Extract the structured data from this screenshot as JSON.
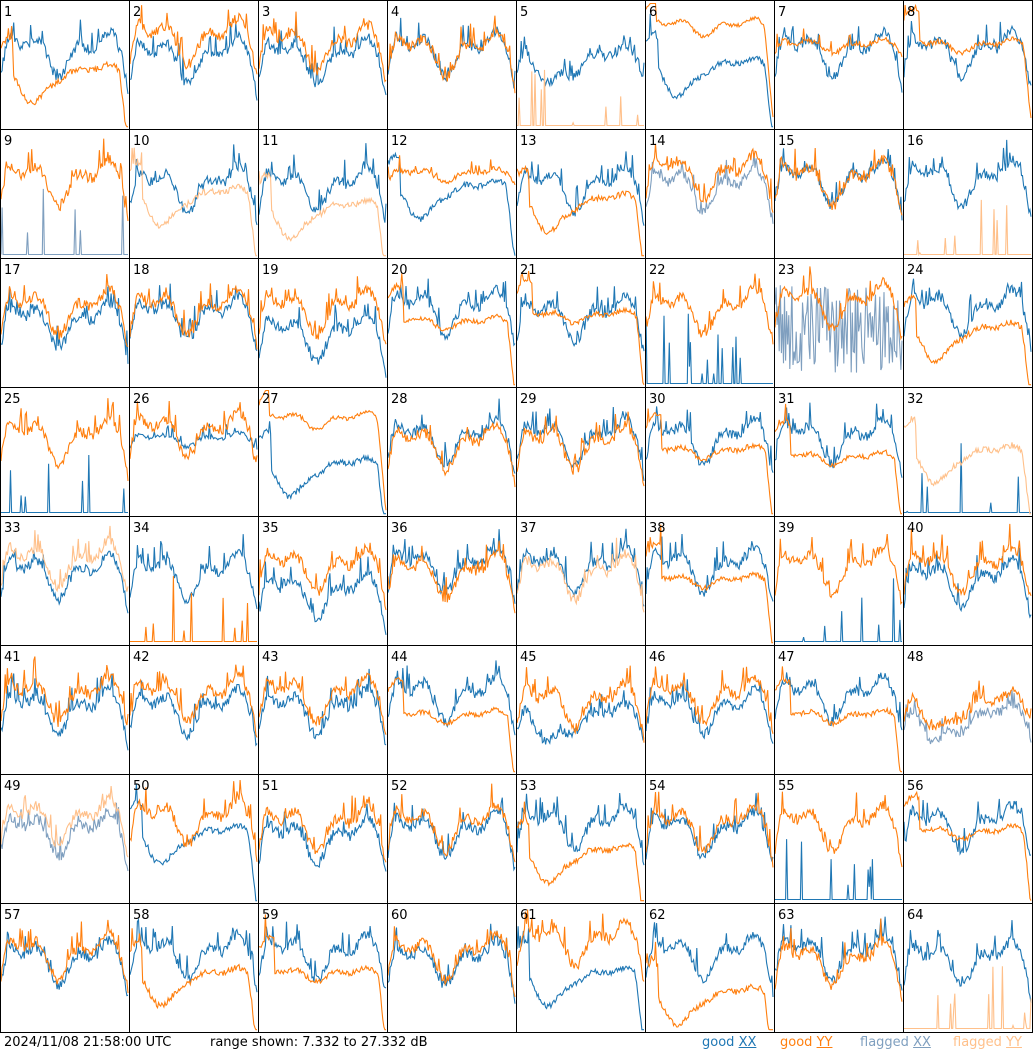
{
  "chart_data": {
    "type": "line",
    "panels": [
      {
        "label": "1",
        "xx": {
          "status": "good",
          "shape": "normal",
          "lvl": 0.4
        },
        "yy": {
          "status": "good",
          "shape": "dip_drop",
          "lvl": 0.55
        }
      },
      {
        "label": "2",
        "xx": {
          "status": "good",
          "shape": "normal",
          "lvl": 0.45
        },
        "yy": {
          "status": "good",
          "shape": "normal",
          "lvl": 0.3
        }
      },
      {
        "label": "3",
        "xx": {
          "status": "good",
          "shape": "normal",
          "lvl": 0.45
        },
        "yy": {
          "status": "good",
          "shape": "normal",
          "lvl": 0.35
        }
      },
      {
        "label": "4",
        "xx": {
          "status": "good",
          "shape": "normal",
          "lvl": 0.4
        },
        "yy": {
          "status": "good",
          "shape": "normal",
          "lvl": 0.4
        }
      },
      {
        "label": "5",
        "xx": {
          "status": "good",
          "shape": "dip",
          "lvl": 0.45
        },
        "yy": {
          "status": "flagged",
          "shape": "spikes_low",
          "lvl": 0.9
        }
      },
      {
        "label": "6",
        "xx": {
          "status": "good",
          "shape": "dip_drop",
          "lvl": 0.5
        },
        "yy": {
          "status": "good",
          "shape": "flat_high",
          "lvl": 0.2
        }
      },
      {
        "label": "7",
        "xx": {
          "status": "good",
          "shape": "normal",
          "lvl": 0.4
        },
        "yy": {
          "status": "good",
          "shape": "flat",
          "lvl": 0.35
        }
      },
      {
        "label": "8",
        "xx": {
          "status": "good",
          "shape": "normal",
          "lvl": 0.4
        },
        "yy": {
          "status": "good",
          "shape": "flat_drop",
          "lvl": 0.35
        }
      },
      {
        "label": "9",
        "xx": {
          "status": "flagged",
          "shape": "spikes_low",
          "lvl": 0.9
        },
        "yy": {
          "status": "good",
          "shape": "normal",
          "lvl": 0.4
        }
      },
      {
        "label": "10",
        "xx": {
          "status": "good",
          "shape": "normal",
          "lvl": 0.45
        },
        "yy": {
          "status": "flagged",
          "shape": "dip_drop",
          "lvl": 0.5
        }
      },
      {
        "label": "11",
        "xx": {
          "status": "good",
          "shape": "normal",
          "lvl": 0.45
        },
        "yy": {
          "status": "flagged",
          "shape": "dip_drop",
          "lvl": 0.6
        }
      },
      {
        "label": "12",
        "xx": {
          "status": "good",
          "shape": "dip_drop",
          "lvl": 0.45
        },
        "yy": {
          "status": "good",
          "shape": "flat",
          "lvl": 0.35
        }
      },
      {
        "label": "13",
        "xx": {
          "status": "good",
          "shape": "normal",
          "lvl": 0.45
        },
        "yy": {
          "status": "good",
          "shape": "dip_drop",
          "lvl": 0.55
        }
      },
      {
        "label": "14",
        "xx": {
          "status": "flagged",
          "shape": "normal",
          "lvl": 0.45
        },
        "yy": {
          "status": "good",
          "shape": "normal",
          "lvl": 0.35
        }
      },
      {
        "label": "15",
        "xx": {
          "status": "good",
          "shape": "normal",
          "lvl": 0.4
        },
        "yy": {
          "status": "good",
          "shape": "normal",
          "lvl": 0.4
        }
      },
      {
        "label": "16",
        "xx": {
          "status": "good",
          "shape": "normal",
          "lvl": 0.4
        },
        "yy": {
          "status": "flagged",
          "shape": "spikes_low",
          "lvl": 0.95
        }
      },
      {
        "label": "17",
        "xx": {
          "status": "good",
          "shape": "normal",
          "lvl": 0.5
        },
        "yy": {
          "status": "good",
          "shape": "normal",
          "lvl": 0.4
        }
      },
      {
        "label": "18",
        "xx": {
          "status": "good",
          "shape": "normal",
          "lvl": 0.45
        },
        "yy": {
          "status": "good",
          "shape": "normal",
          "lvl": 0.4
        }
      },
      {
        "label": "19",
        "xx": {
          "status": "good",
          "shape": "normal",
          "lvl": 0.6
        },
        "yy": {
          "status": "good",
          "shape": "normal",
          "lvl": 0.4
        }
      },
      {
        "label": "20",
        "xx": {
          "status": "good",
          "shape": "normal",
          "lvl": 0.4
        },
        "yy": {
          "status": "good",
          "shape": "flat_drop",
          "lvl": 0.5
        }
      },
      {
        "label": "21",
        "xx": {
          "status": "good",
          "shape": "normal",
          "lvl": 0.45
        },
        "yy": {
          "status": "good",
          "shape": "flat_drop",
          "lvl": 0.45
        }
      },
      {
        "label": "22",
        "xx": {
          "status": "good",
          "shape": "spikes_low",
          "lvl": 0.9
        },
        "yy": {
          "status": "good",
          "shape": "normal",
          "lvl": 0.4
        }
      },
      {
        "label": "23",
        "xx": {
          "status": "flagged",
          "shape": "noisy",
          "lvl": 0.55
        },
        "yy": {
          "status": "good",
          "shape": "normal",
          "lvl": 0.35
        }
      },
      {
        "label": "24",
        "xx": {
          "status": "good",
          "shape": "normal",
          "lvl": 0.4
        },
        "yy": {
          "status": "good",
          "shape": "dip_drop",
          "lvl": 0.55
        }
      },
      {
        "label": "25",
        "xx": {
          "status": "good",
          "shape": "spikes_low",
          "lvl": 0.95
        },
        "yy": {
          "status": "good",
          "shape": "normal",
          "lvl": 0.4
        }
      },
      {
        "label": "26",
        "xx": {
          "status": "good",
          "shape": "flat",
          "lvl": 0.4
        },
        "yy": {
          "status": "good",
          "shape": "normal",
          "lvl": 0.35
        }
      },
      {
        "label": "27",
        "xx": {
          "status": "good",
          "shape": "dip_drop",
          "lvl": 0.6
        },
        "yy": {
          "status": "good",
          "shape": "flat_high",
          "lvl": 0.25
        }
      },
      {
        "label": "28",
        "xx": {
          "status": "good",
          "shape": "normal",
          "lvl": 0.4
        },
        "yy": {
          "status": "good",
          "shape": "normal",
          "lvl": 0.45
        }
      },
      {
        "label": "29",
        "xx": {
          "status": "good",
          "shape": "normal",
          "lvl": 0.4
        },
        "yy": {
          "status": "good",
          "shape": "normal",
          "lvl": 0.45
        }
      },
      {
        "label": "30",
        "xx": {
          "status": "good",
          "shape": "normal",
          "lvl": 0.4
        },
        "yy": {
          "status": "good",
          "shape": "flat_drop",
          "lvl": 0.5
        }
      },
      {
        "label": "31",
        "xx": {
          "status": "good",
          "shape": "normal",
          "lvl": 0.4
        },
        "yy": {
          "status": "good",
          "shape": "flat_drop",
          "lvl": 0.55
        }
      },
      {
        "label": "32",
        "xx": {
          "status": "good",
          "shape": "spikes_low",
          "lvl": 0.9
        },
        "yy": {
          "status": "flagged",
          "shape": "dip_drop",
          "lvl": 0.5
        }
      },
      {
        "label": "33",
        "xx": {
          "status": "good",
          "shape": "normal",
          "lvl": 0.45
        },
        "yy": {
          "status": "flagged",
          "shape": "normal",
          "lvl": 0.35
        }
      },
      {
        "label": "34",
        "xx": {
          "status": "good",
          "shape": "normal",
          "lvl": 0.45
        },
        "yy": {
          "status": "good",
          "shape": "spikes_low",
          "lvl": 0.95
        }
      },
      {
        "label": "35",
        "xx": {
          "status": "good",
          "shape": "normal",
          "lvl": 0.6
        },
        "yy": {
          "status": "good",
          "shape": "normal",
          "lvl": 0.4
        }
      },
      {
        "label": "36",
        "xx": {
          "status": "good",
          "shape": "normal",
          "lvl": 0.4
        },
        "yy": {
          "status": "good",
          "shape": "normal",
          "lvl": 0.45
        }
      },
      {
        "label": "37",
        "xx": {
          "status": "good",
          "shape": "normal",
          "lvl": 0.4
        },
        "yy": {
          "status": "flagged",
          "shape": "normal",
          "lvl": 0.45
        }
      },
      {
        "label": "38",
        "xx": {
          "status": "good",
          "shape": "normal",
          "lvl": 0.4
        },
        "yy": {
          "status": "good",
          "shape": "flat_drop",
          "lvl": 0.5
        }
      },
      {
        "label": "39",
        "xx": {
          "status": "good",
          "shape": "spikes_low",
          "lvl": 0.95
        },
        "yy": {
          "status": "good",
          "shape": "normal",
          "lvl": 0.4
        }
      },
      {
        "label": "40",
        "xx": {
          "status": "good",
          "shape": "normal",
          "lvl": 0.5
        },
        "yy": {
          "status": "good",
          "shape": "normal",
          "lvl": 0.4
        }
      },
      {
        "label": "41",
        "xx": {
          "status": "good",
          "shape": "normal",
          "lvl": 0.5
        },
        "yy": {
          "status": "good",
          "shape": "normal",
          "lvl": 0.4
        }
      },
      {
        "label": "42",
        "xx": {
          "status": "good",
          "shape": "normal",
          "lvl": 0.5
        },
        "yy": {
          "status": "good",
          "shape": "normal",
          "lvl": 0.4
        }
      },
      {
        "label": "43",
        "xx": {
          "status": "good",
          "shape": "normal",
          "lvl": 0.5
        },
        "yy": {
          "status": "good",
          "shape": "normal",
          "lvl": 0.4
        }
      },
      {
        "label": "44",
        "xx": {
          "status": "good",
          "shape": "normal",
          "lvl": 0.4
        },
        "yy": {
          "status": "good",
          "shape": "flat_drop",
          "lvl": 0.55
        }
      },
      {
        "label": "45",
        "xx": {
          "status": "good",
          "shape": "dip",
          "lvl": 0.55
        },
        "yy": {
          "status": "good",
          "shape": "normal",
          "lvl": 0.45
        }
      },
      {
        "label": "46",
        "xx": {
          "status": "good",
          "shape": "normal",
          "lvl": 0.5
        },
        "yy": {
          "status": "good",
          "shape": "normal",
          "lvl": 0.4
        }
      },
      {
        "label": "47",
        "xx": {
          "status": "good",
          "shape": "normal",
          "lvl": 0.4
        },
        "yy": {
          "status": "good",
          "shape": "flat_drop",
          "lvl": 0.55
        }
      },
      {
        "label": "48",
        "xx": {
          "status": "flagged",
          "shape": "dip",
          "lvl": 0.55
        },
        "yy": {
          "status": "good",
          "shape": "dip",
          "lvl": 0.45
        }
      },
      {
        "label": "49",
        "xx": {
          "status": "flagged",
          "shape": "normal",
          "lvl": 0.45
        },
        "yy": {
          "status": "flagged",
          "shape": "normal",
          "lvl": 0.35
        }
      },
      {
        "label": "50",
        "xx": {
          "status": "good",
          "shape": "dip_drop",
          "lvl": 0.45
        },
        "yy": {
          "status": "good",
          "shape": "normal",
          "lvl": 0.35
        }
      },
      {
        "label": "51",
        "xx": {
          "status": "good",
          "shape": "normal",
          "lvl": 0.5
        },
        "yy": {
          "status": "good",
          "shape": "normal",
          "lvl": 0.4
        }
      },
      {
        "label": "52",
        "xx": {
          "status": "good",
          "shape": "normal",
          "lvl": 0.45
        },
        "yy": {
          "status": "good",
          "shape": "normal",
          "lvl": 0.4
        }
      },
      {
        "label": "53",
        "xx": {
          "status": "good",
          "shape": "normal",
          "lvl": 0.4
        },
        "yy": {
          "status": "good",
          "shape": "dip_drop",
          "lvl": 0.6
        }
      },
      {
        "label": "54",
        "xx": {
          "status": "good",
          "shape": "normal",
          "lvl": 0.45
        },
        "yy": {
          "status": "good",
          "shape": "normal",
          "lvl": 0.4
        }
      },
      {
        "label": "55",
        "xx": {
          "status": "good",
          "shape": "spikes_low",
          "lvl": 0.9
        },
        "yy": {
          "status": "good",
          "shape": "normal",
          "lvl": 0.4
        }
      },
      {
        "label": "56",
        "xx": {
          "status": "good",
          "shape": "normal",
          "lvl": 0.4
        },
        "yy": {
          "status": "good",
          "shape": "flat_drop",
          "lvl": 0.45
        }
      },
      {
        "label": "57",
        "xx": {
          "status": "good",
          "shape": "normal",
          "lvl": 0.45
        },
        "yy": {
          "status": "good",
          "shape": "normal",
          "lvl": 0.4
        }
      },
      {
        "label": "58",
        "xx": {
          "status": "good",
          "shape": "normal",
          "lvl": 0.4
        },
        "yy": {
          "status": "good",
          "shape": "dip_drop",
          "lvl": 0.55
        }
      },
      {
        "label": "59",
        "xx": {
          "status": "good",
          "shape": "normal",
          "lvl": 0.4
        },
        "yy": {
          "status": "good",
          "shape": "flat_drop",
          "lvl": 0.55
        }
      },
      {
        "label": "60",
        "xx": {
          "status": "good",
          "shape": "normal",
          "lvl": 0.45
        },
        "yy": {
          "status": "good",
          "shape": "normal",
          "lvl": 0.4
        }
      },
      {
        "label": "61",
        "xx": {
          "status": "good",
          "shape": "dip_drop",
          "lvl": 0.55
        },
        "yy": {
          "status": "good",
          "shape": "normal",
          "lvl": 0.3
        }
      },
      {
        "label": "62",
        "xx": {
          "status": "good",
          "shape": "normal",
          "lvl": 0.4
        },
        "yy": {
          "status": "good",
          "shape": "dip_drop",
          "lvl": 0.7
        }
      },
      {
        "label": "63",
        "xx": {
          "status": "good",
          "shape": "normal",
          "lvl": 0.4
        },
        "yy": {
          "status": "good",
          "shape": "normal",
          "lvl": 0.45
        }
      },
      {
        "label": "64",
        "xx": {
          "status": "good",
          "shape": "normal",
          "lvl": 0.45
        },
        "yy": {
          "status": "flagged",
          "shape": "spikes_low",
          "lvl": 0.95
        }
      }
    ]
  },
  "footer": {
    "timestamp": "2024/11/08 21:58:00 UTC",
    "range_text": "range shown: 7.332 to 27.332 dB",
    "legend": [
      {
        "status": "good",
        "pol": "XX"
      },
      {
        "status": "good",
        "pol": "YY"
      },
      {
        "status": "flagged",
        "pol": "XX"
      },
      {
        "status": "flagged",
        "pol": "YY"
      }
    ]
  },
  "colors": {
    "good_xx": "#1f77b4",
    "good_yy": "#ff7f0e",
    "flagged_xx": "#7f9fbf",
    "flagged_yy": "#ffc08a"
  }
}
